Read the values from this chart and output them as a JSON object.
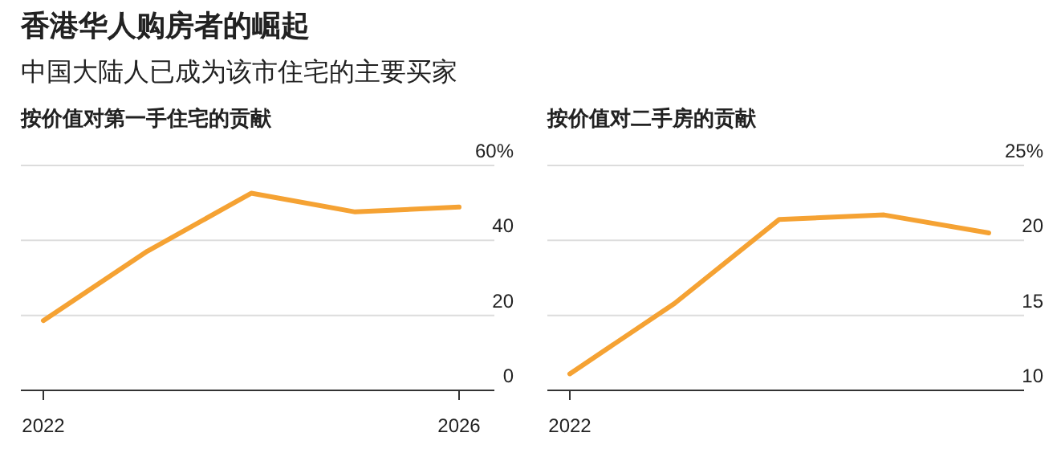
{
  "chart_data": [
    {
      "type": "line",
      "title": "按价值对第一手住宅的贡献",
      "annotations": [
        "香港华人购房者的崛起",
        "中国大陆人已成为该市住宅的主要买家"
      ],
      "categories": [
        "2022",
        null,
        null,
        null,
        "2026"
      ],
      "values": [
        18.6,
        37.1,
        52.6,
        47.6,
        48.9
      ],
      "color": "#f5a233",
      "ylim": [
        0,
        60
      ],
      "yticks": [
        0,
        20,
        40,
        {
          "value": 60,
          "label": "60%"
        }
      ],
      "grid": "y"
    },
    {
      "type": "line",
      "title": "按价值对二手房的贡献",
      "categories": [
        "2022",
        null,
        null,
        null,
        null
      ],
      "values": [
        11.1,
        15.8,
        21.4,
        21.7,
        20.5
      ],
      "color": "#f5a233",
      "ylim": [
        10,
        25
      ],
      "yticks": [
        10,
        15,
        20,
        {
          "value": 25,
          "label": "25%"
        }
      ],
      "grid": "y"
    }
  ]
}
